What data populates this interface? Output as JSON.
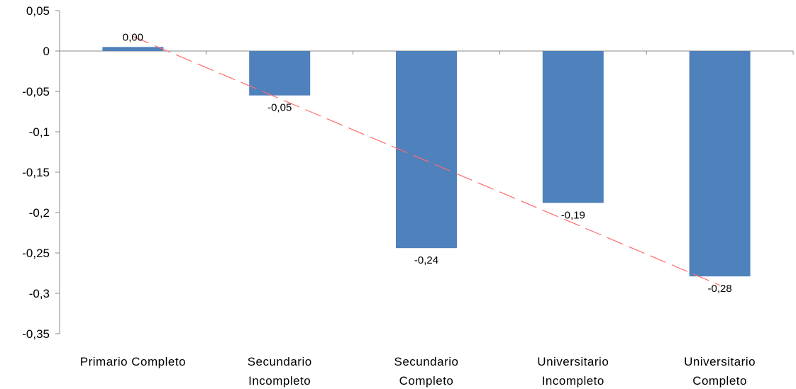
{
  "chart_data": {
    "type": "bar",
    "categories": [
      [
        "Primario Completo"
      ],
      [
        "Secundario",
        "Incompleto"
      ],
      [
        "Secundario",
        "Completo"
      ],
      [
        "Universitario",
        "Incompleto"
      ],
      [
        "Universitario",
        "Completo"
      ]
    ],
    "values": [
      0.005,
      -0.055,
      -0.244,
      -0.188,
      -0.279
    ],
    "data_labels": [
      "0,00",
      "-0,05",
      "-0,24",
      "-0,19",
      "-0,28"
    ],
    "ylim": [
      -0.35,
      0.05
    ],
    "yticks": [
      0.05,
      0,
      -0.05,
      -0.1,
      -0.15,
      -0.2,
      -0.25,
      -0.3,
      -0.35
    ],
    "ytick_labels": [
      "0,05",
      "0",
      "-0,05",
      "-0,1",
      "-0,15",
      "-0,2",
      "-0,25",
      "-0,3",
      "-0,35"
    ],
    "trendline": {
      "style": "dashed",
      "start": 0.018,
      "end": -0.29
    },
    "grid": false,
    "colors": {
      "bar": "#4f81bd",
      "trendline": "#ff6b6b",
      "axis": "#888888"
    }
  }
}
